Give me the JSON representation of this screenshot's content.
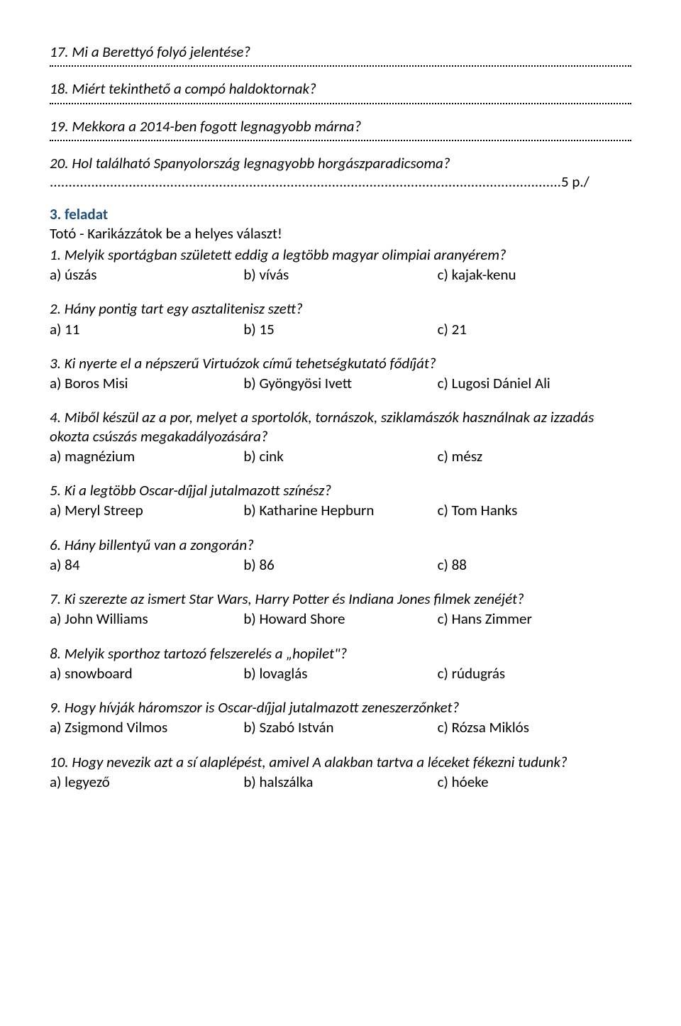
{
  "short_q": {
    "q17": "17. Mi a Berettyó folyó jelentése?",
    "q18": "18. Miért tekinthető a compó haldoktornak?",
    "q19": "19. Mekkora a 2014-ben fogott legnagyobb márna?",
    "q20": "20. Hol található Spanyolország legnagyobb horgászparadicsoma?",
    "points": "5 p./"
  },
  "section3": {
    "title": "3. feladat",
    "subtitle": "Totó - Karikázzátok be a helyes választ!"
  },
  "quiz": [
    {
      "q": "1. Melyik sportágban született eddig a legtöbb magyar olimpiai aranyérem?",
      "a": "a) úszás",
      "b": "b) vívás",
      "c": "c) kajak-kenu"
    },
    {
      "q": "2. Hány pontig tart egy asztalitenisz szett?",
      "a": "a) 11",
      "b": "b) 15",
      "c": "c) 21"
    },
    {
      "q": "3. Ki nyerte el a népszerű Virtuózok című tehetségkutató fődíját?",
      "a": "a) Boros Misi",
      "b": "b) Gyöngyösi Ivett",
      "c": "c) Lugosi Dániel Ali"
    },
    {
      "q": "4. Miből készül az a por, melyet a sportolók, tornászok, sziklamászók használnak az izzadás okozta csúszás megakadályozására?",
      "a": "a) magnézium",
      "b": "b) cink",
      "c": "c) mész"
    },
    {
      "q": "5. Ki a legtöbb Oscar-díjjal jutalmazott színész?",
      "a": "a) Meryl Streep",
      "b": "b) Katharine Hepburn",
      "c": "c) Tom Hanks"
    },
    {
      "q": "6. Hány billentyű van a zongorán?",
      "a": "a) 84",
      "b": "b) 86",
      "c": "c) 88"
    },
    {
      "q": "7. Ki szerezte az ismert Star Wars, Harry Potter és Indiana Jones filmek zenéjét?",
      "a": "a) John Williams",
      "b": "b) Howard Shore",
      "c": "c) Hans Zimmer"
    },
    {
      "q": "8. Melyik sporthoz tartozó felszerelés a „hopilet\"?",
      "a": "a) snowboard",
      "b": "b) lovaglás",
      "c": "c) rúdugrás"
    },
    {
      "q": "9. Hogy hívják háromszor is Oscar-díjjal jutalmazott zeneszerzőnket?",
      "a": "a) Zsigmond Vilmos",
      "b": "b) Szabó István",
      "c": "c) Rózsa Miklós"
    },
    {
      "q": "10. Hogy nevezik azt a sí alaplépést, amivel A alakban tartva a léceket fékezni tudunk?",
      "a": "a) legyező",
      "b": "b) halszálka",
      "c": "c) hóeke"
    }
  ]
}
